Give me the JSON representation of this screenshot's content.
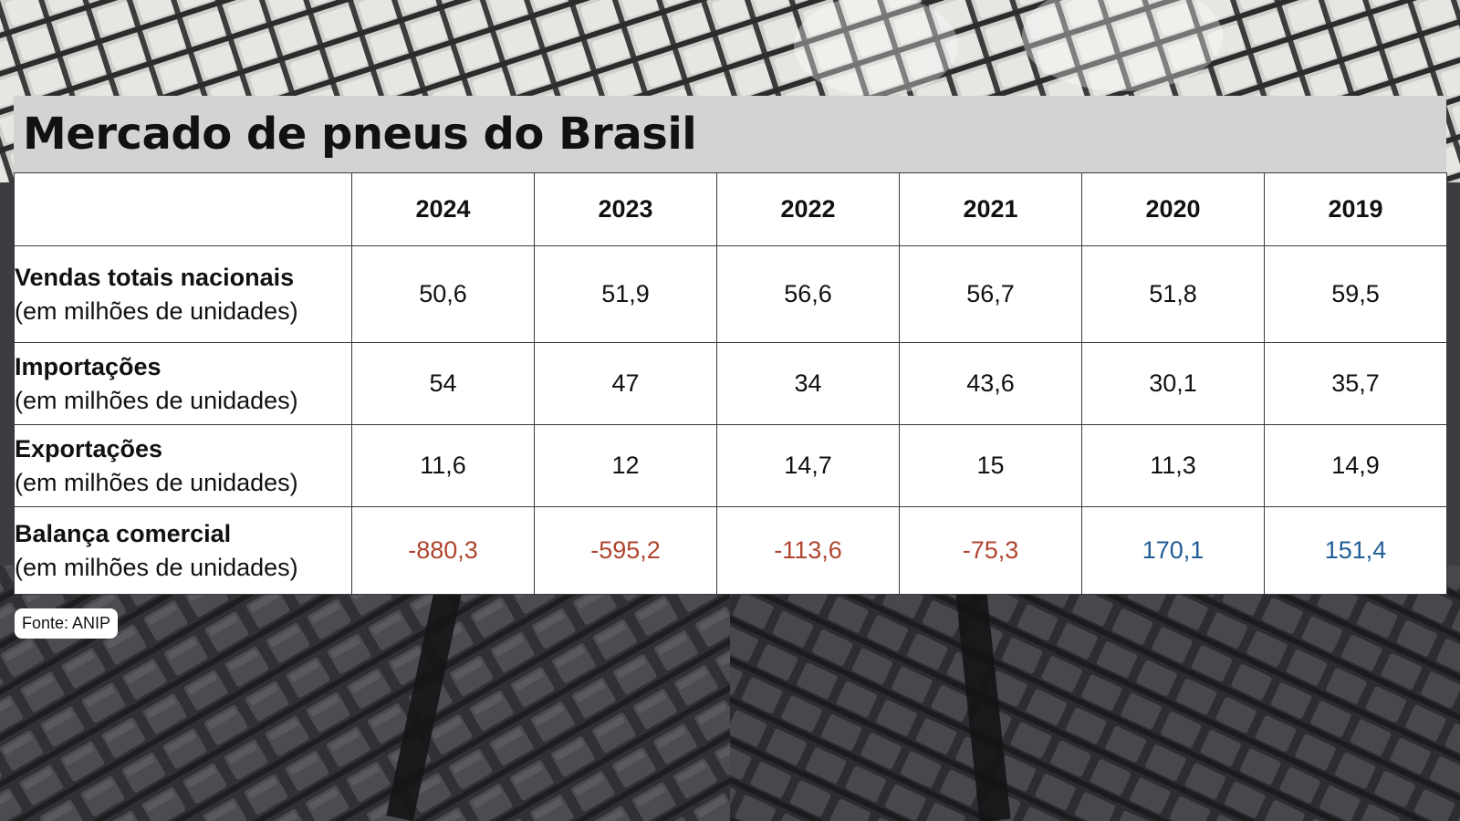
{
  "title": "Mercado de pneus do Brasil",
  "source": "Fonte: ANIP",
  "background": {
    "description_icon": "tire-tread-pattern",
    "base_color": "#3a3c3f",
    "light_color": "#d7d7d4"
  },
  "colors": {
    "negative": "#b0452f",
    "positive": "#1f5d97",
    "title_bar": "#d3d3d3"
  },
  "chart_data": {
    "type": "table",
    "title": "Mercado de pneus do Brasil",
    "columns": [
      "2024",
      "2023",
      "2022",
      "2021",
      "2020",
      "2019"
    ],
    "rows": [
      {
        "label": "Vendas totais nacionais",
        "unit": "(em milhões de unidades)",
        "values": [
          "50,6",
          "51,9",
          "56,6",
          "56,7",
          "51,8",
          "59,5"
        ]
      },
      {
        "label": "Importações",
        "unit": "(em milhões de unidades)",
        "values": [
          "54",
          "47",
          "34",
          "43,6",
          "30,1",
          "35,7"
        ]
      },
      {
        "label": "Exportações",
        "unit": "(em milhões de unidades)",
        "values": [
          "11,6",
          "12",
          "14,7",
          "15",
          "11,3",
          "14,9"
        ]
      },
      {
        "label": "Balança comercial",
        "unit": "(em milhões de unidades)",
        "values": [
          "-880,3",
          "-595,2",
          "-113,6",
          "-75,3",
          "170,1",
          "151,4"
        ]
      }
    ]
  }
}
